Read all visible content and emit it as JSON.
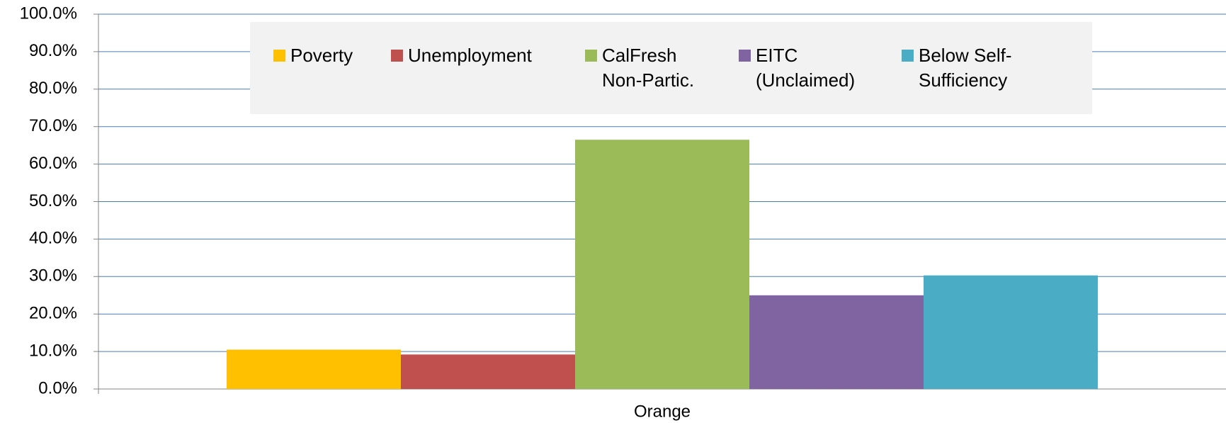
{
  "chart_data": {
    "type": "bar",
    "categories": [
      "Orange"
    ],
    "series": [
      {
        "name": "Poverty",
        "color": "#ffc000",
        "values": [
          10.5
        ]
      },
      {
        "name": "Unemployment",
        "color": "#c0504d",
        "values": [
          9.2
        ]
      },
      {
        "name": "CalFresh Non-Partic.",
        "color": "#9bbb59",
        "values": [
          66.5
        ]
      },
      {
        "name": "EITC (Unclaimed)",
        "color": "#8064a2",
        "values": [
          25.0
        ]
      },
      {
        "name": "Below Self-Sufficiency",
        "color": "#4bacc6",
        "values": [
          30.3
        ]
      }
    ],
    "ylim": [
      0,
      100
    ],
    "yticks": [
      {
        "value": 0,
        "label": "0.0%"
      },
      {
        "value": 10,
        "label": "10.0%"
      },
      {
        "value": 20,
        "label": "20.0%"
      },
      {
        "value": 30,
        "label": "30.0%"
      },
      {
        "value": 40,
        "label": "40.0%"
      },
      {
        "value": 50,
        "label": "50.0%"
      },
      {
        "value": 60,
        "label": "60.0%"
      },
      {
        "value": 70,
        "label": "70.0%"
      },
      {
        "value": 80,
        "label": "80.0%"
      },
      {
        "value": 90,
        "label": "90.0%"
      },
      {
        "value": 100,
        "label": "100.0%"
      }
    ],
    "grid": true,
    "legend": "top"
  }
}
